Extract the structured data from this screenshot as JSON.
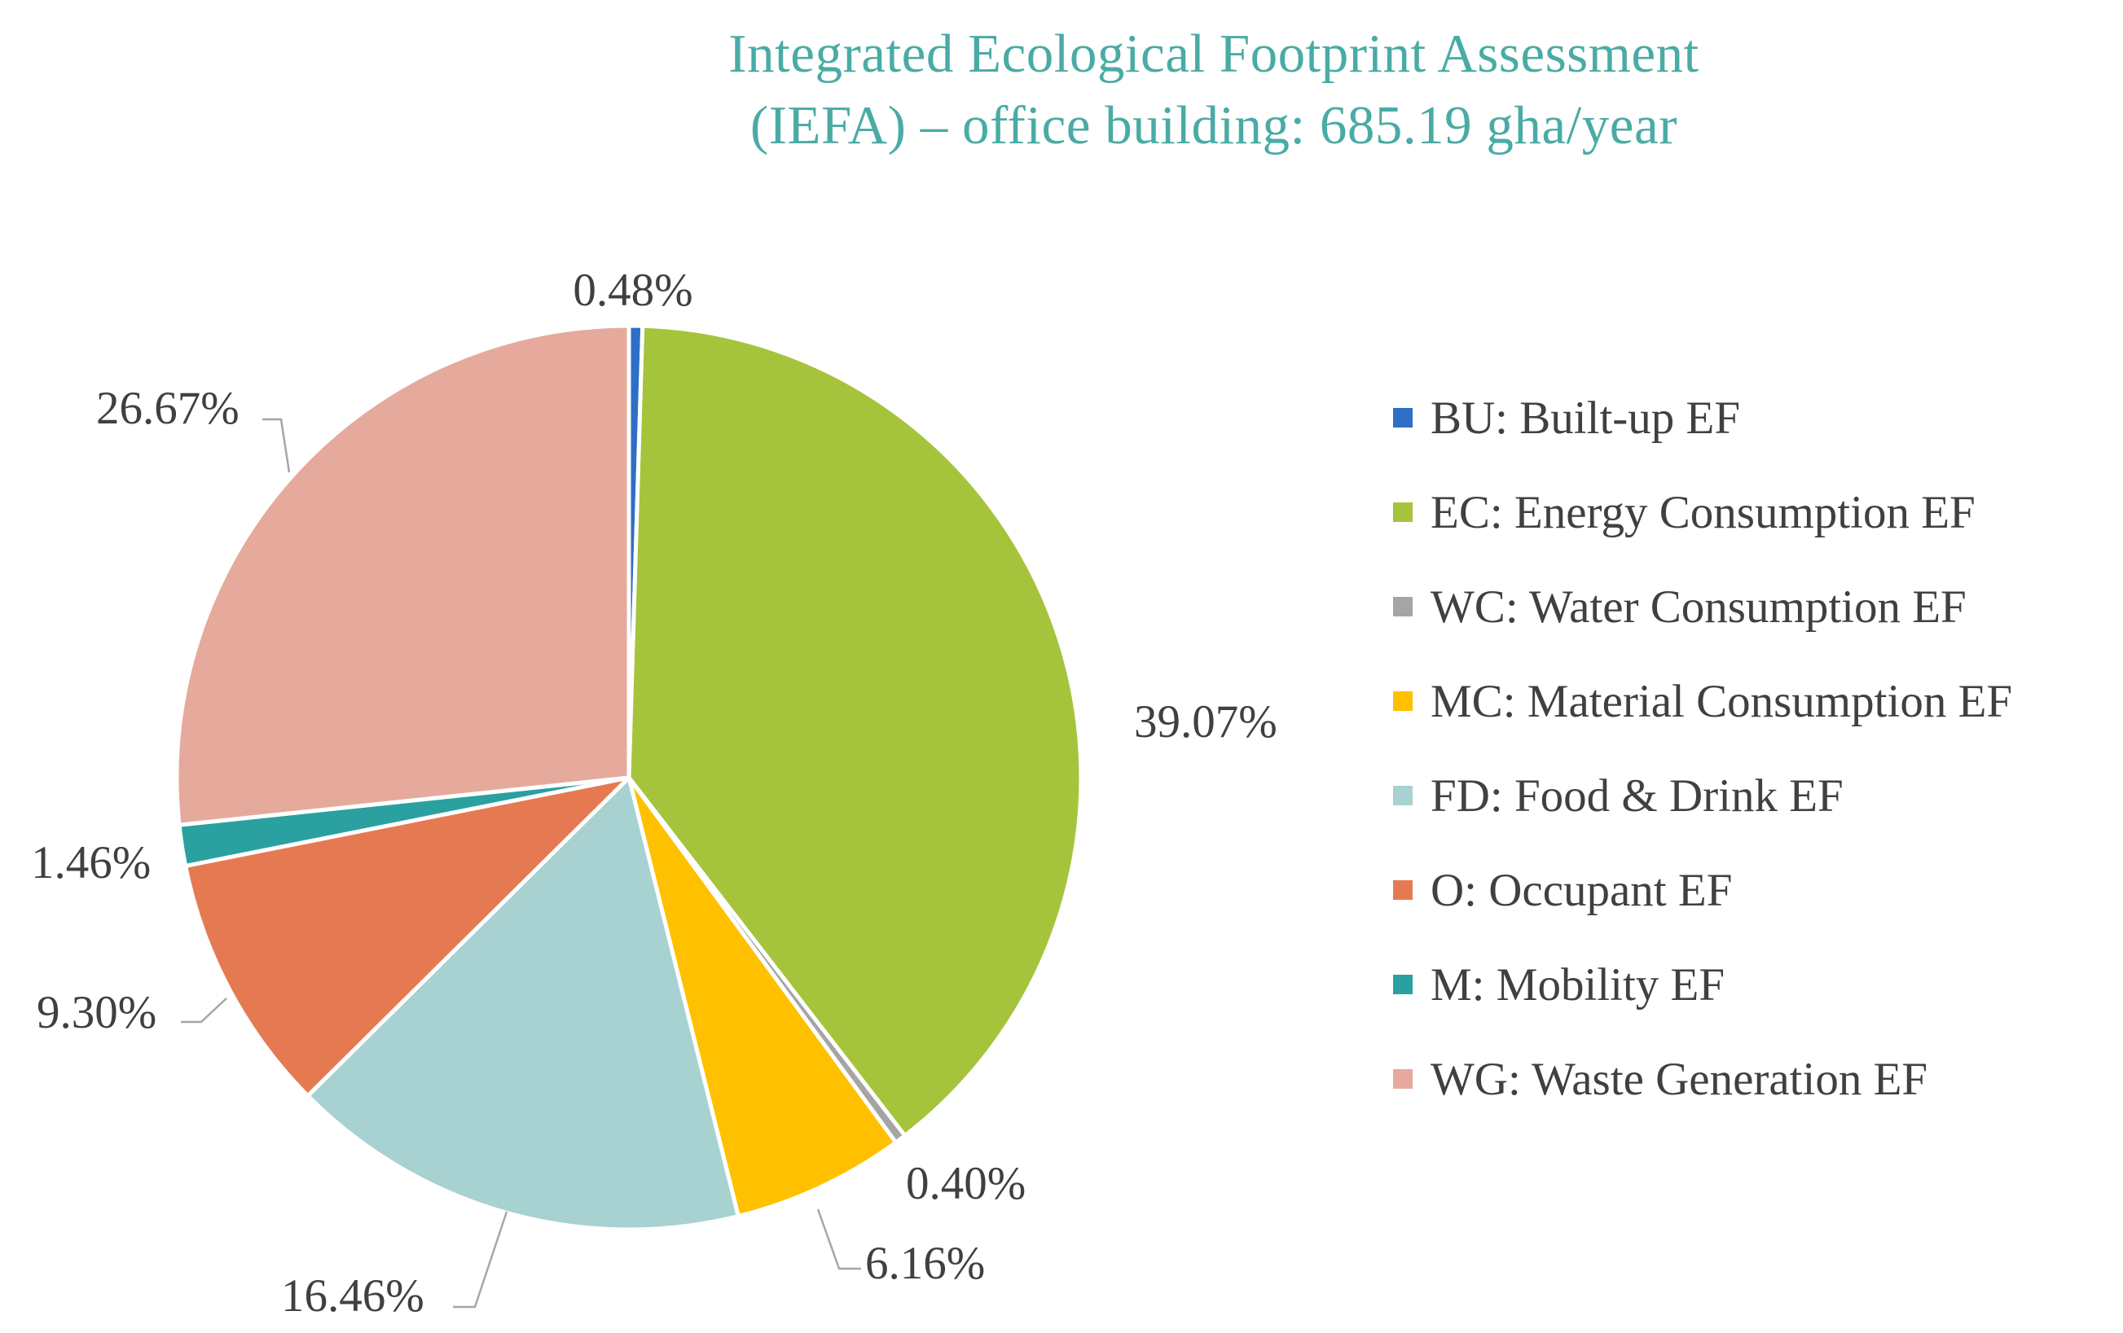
{
  "chart_data": {
    "type": "pie",
    "title": "Integrated Ecological Footprint Assessment (IEFA) – office building: 685.19 gha/year",
    "title_lines": [
      "Integrated Ecological Footprint Assessment",
      "(IEFA) – office building: 685.19 gha/year"
    ],
    "start_angle_deg": 0,
    "direction": "clockwise",
    "legend_position": "right",
    "slices": [
      {
        "key": "BU",
        "label": "BU: Built-up EF",
        "value": 0.48,
        "display": "0.48%",
        "color": "#2e6fc6"
      },
      {
        "key": "EC",
        "label": "EC: Energy Consumption EF",
        "value": 39.07,
        "display": "39.07%",
        "color": "#a5c43c"
      },
      {
        "key": "WC",
        "label": "WC: Water Consumption EF",
        "value": 0.4,
        "display": "0.40%",
        "color": "#a5a5a5"
      },
      {
        "key": "MC",
        "label": "MC: Material Consumption EF",
        "value": 6.16,
        "display": "6.16%",
        "color": "#ffc000"
      },
      {
        "key": "FD",
        "label": "FD: Food & Drink EF",
        "value": 16.46,
        "display": "16.46%",
        "color": "#a8d1d1"
      },
      {
        "key": "O",
        "label": "O: Occupant EF",
        "value": 9.3,
        "display": "9.30%",
        "color": "#e57a52"
      },
      {
        "key": "M",
        "label": "M: Mobility EF",
        "value": 1.46,
        "display": "1.46%",
        "color": "#2aa0a0"
      },
      {
        "key": "WG",
        "label": "WG: Waste Generation EF",
        "value": 26.67,
        "display": "26.67%",
        "color": "#e5aa9c"
      }
    ]
  }
}
